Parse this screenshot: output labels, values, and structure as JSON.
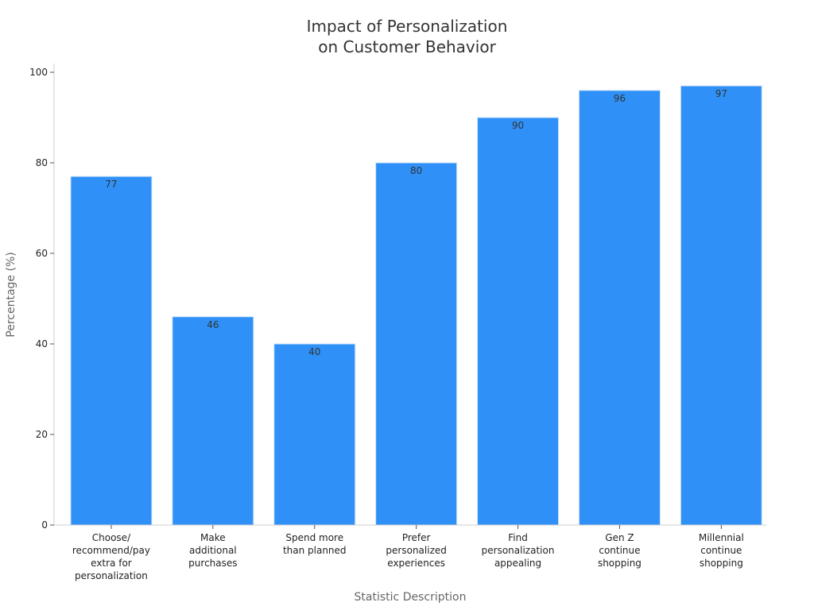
{
  "chart_data": {
    "type": "bar",
    "title": [
      "Impact of Personalization",
      "on Customer Behavior"
    ],
    "xlabel": "Statistic Description",
    "ylabel": "Percentage (%)",
    "ylim": [
      0,
      100
    ],
    "yticks": [
      0,
      20,
      40,
      60,
      80,
      100
    ],
    "categories": [
      [
        "Choose/",
        "recommend/pay",
        "extra for",
        "personalization"
      ],
      [
        "Make",
        "additional",
        "purchases"
      ],
      [
        "Spend more",
        "than planned"
      ],
      [
        "Prefer",
        "personalized",
        "experiences"
      ],
      [
        "Find",
        "personalization",
        "appealing"
      ],
      [
        "Gen Z",
        "continue",
        "shopping"
      ],
      [
        "Millennial",
        "continue",
        "shopping"
      ]
    ],
    "values": [
      77,
      46,
      40,
      80,
      90,
      96,
      97
    ],
    "bar_color": "#2f91f7",
    "grid": false,
    "legend": "none"
  }
}
